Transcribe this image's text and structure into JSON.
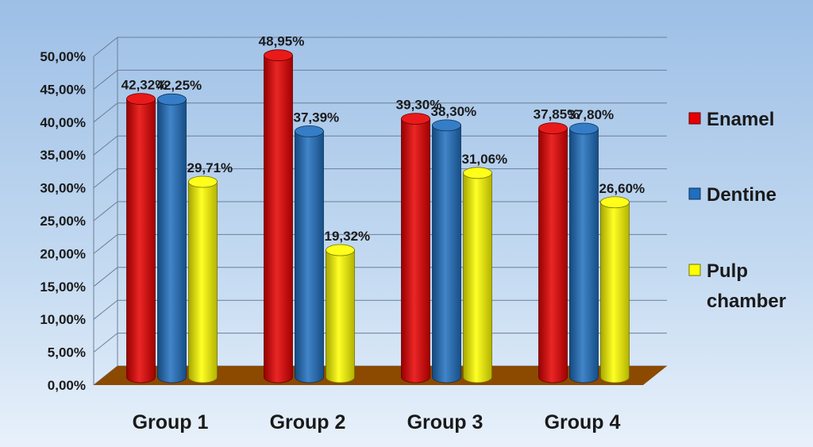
{
  "chart_data": {
    "type": "bar",
    "categories": [
      "Group 1",
      "Group 2",
      "Group 3",
      "Group 4"
    ],
    "series": [
      {
        "name": "Enamel",
        "values": [
          42.32,
          48.95,
          39.3,
          37.85
        ],
        "labels": [
          "42,32%",
          "48,95%",
          "39,30%",
          "37,85%"
        ],
        "color": "#e60000"
      },
      {
        "name": "Dentine",
        "values": [
          42.25,
          37.39,
          38.3,
          37.8
        ],
        "labels": [
          "42,25%",
          "37,39%",
          "38,30%",
          "37,80%"
        ],
        "color": "#1f6fc0"
      },
      {
        "name": "Pulp chamber",
        "values": [
          29.71,
          19.32,
          31.06,
          26.6
        ],
        "labels": [
          "29,71%",
          "19,32%",
          "31,06%",
          "26,60%"
        ],
        "color": "#ffff00"
      }
    ],
    "legend_lines": [
      [
        "Enamel"
      ],
      [
        "Dentine"
      ],
      [
        "Pulp",
        "chamber"
      ]
    ],
    "yticks": [
      "0,00%",
      "5,00%",
      "10,00%",
      "15,00%",
      "20,00%",
      "25,00%",
      "30,00%",
      "35,00%",
      "40,00%",
      "45,00%",
      "50,00%"
    ],
    "ylim": [
      0,
      50
    ],
    "grid": true,
    "legend_position": "right",
    "floor_color": "#8b4a00",
    "background_color": "#aecbea"
  }
}
